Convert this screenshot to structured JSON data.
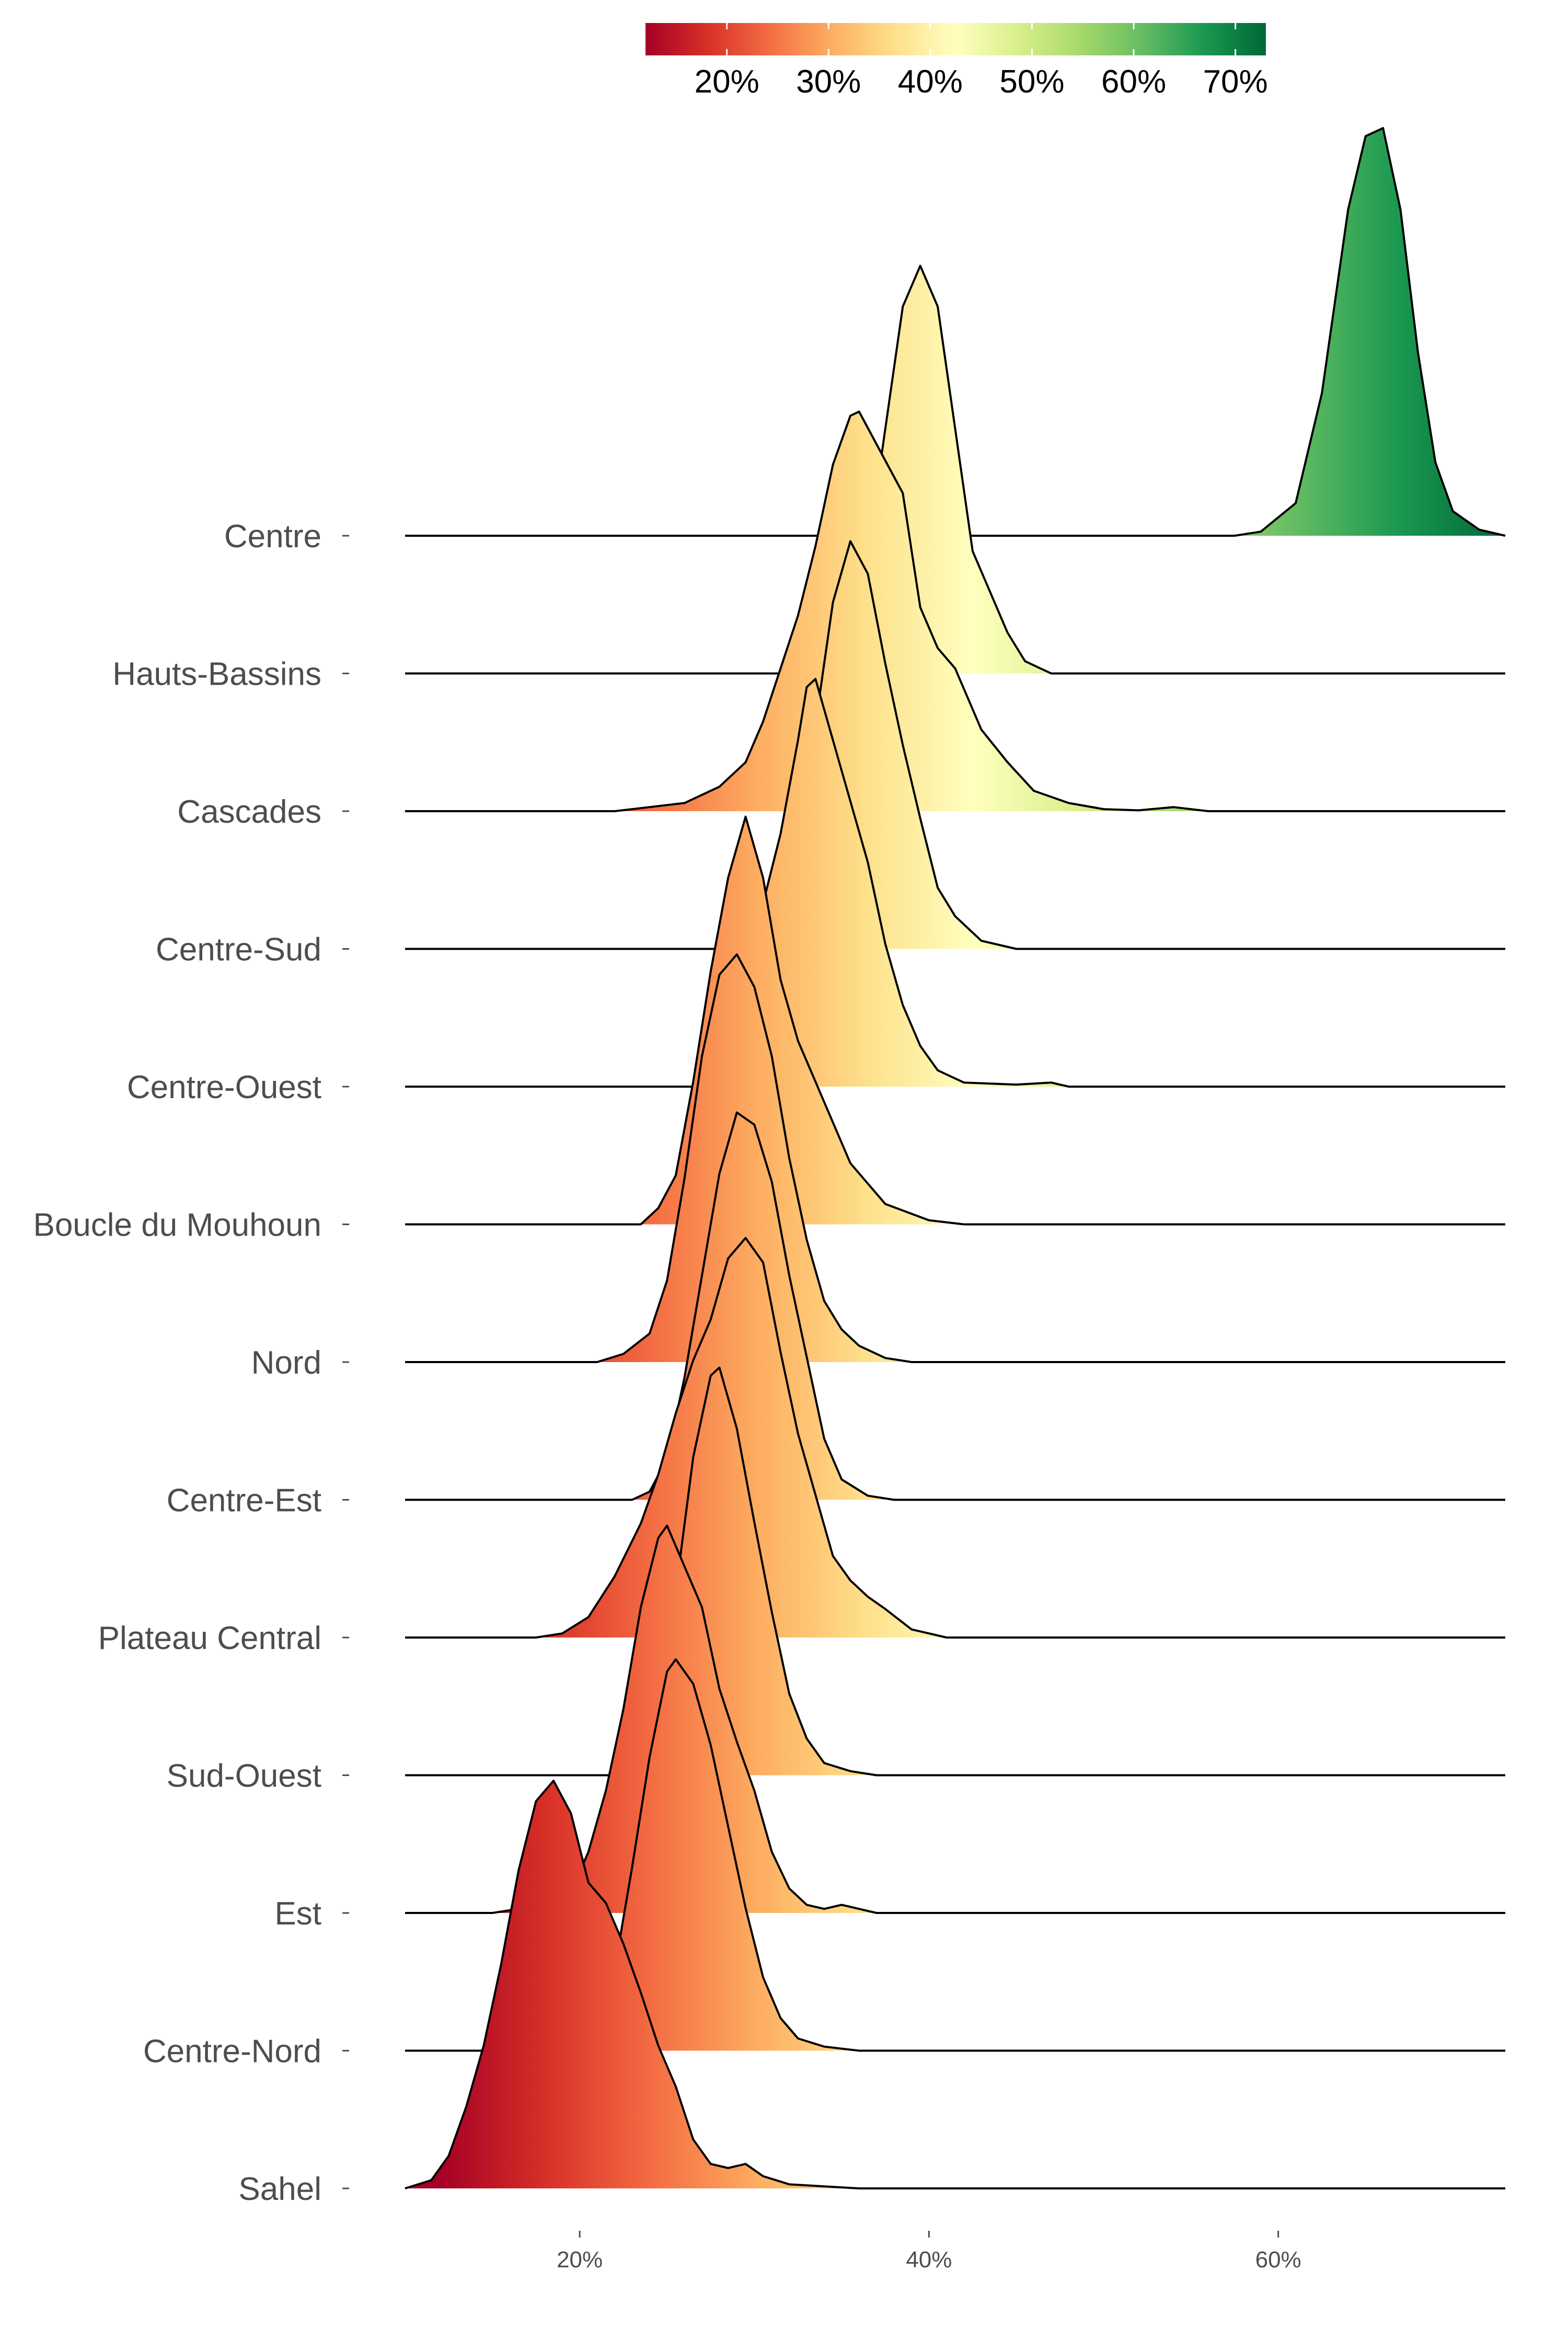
{
  "chart_data": {
    "type": "ridgeline",
    "title": "",
    "xlabel": "",
    "ylabel": "",
    "xlim": [
      10,
      73
    ],
    "x_ticks": [
      {
        "value": 20,
        "label": "20%"
      },
      {
        "value": 40,
        "label": "40%"
      },
      {
        "value": 60,
        "label": "60%"
      }
    ],
    "fill_scale": {
      "palette": "RdYlGn",
      "domain": [
        12,
        73
      ],
      "colors": [
        "#a50026",
        "#d73027",
        "#f46d43",
        "#fdae61",
        "#fee08b",
        "#ffffbf",
        "#d9ef8b",
        "#a6d96a",
        "#66bd63",
        "#1a9850",
        "#006837"
      ],
      "legend_ticks": [
        {
          "value": 20,
          "label": "20%"
        },
        {
          "value": 30,
          "label": "30%"
        },
        {
          "value": 40,
          "label": "40%"
        },
        {
          "value": 50,
          "label": "50%"
        },
        {
          "value": 60,
          "label": "60%"
        },
        {
          "value": 70,
          "label": "70%"
        }
      ],
      "legend_position": "top"
    },
    "series": [
      {
        "name": "Centre",
        "points": [
          [
            57.5,
            0
          ],
          [
            59,
            0.01
          ],
          [
            61,
            0.08
          ],
          [
            62.5,
            0.35
          ],
          [
            64,
            0.8
          ],
          [
            65,
            0.98
          ],
          [
            66,
            1
          ],
          [
            67,
            0.8
          ],
          [
            68,
            0.45
          ],
          [
            69,
            0.18
          ],
          [
            70,
            0.06
          ],
          [
            71.5,
            0.015
          ],
          [
            73,
            0
          ]
        ]
      },
      {
        "name": "Hauts-Bassins",
        "points": [
          [
            32,
            0
          ],
          [
            34,
            0.02
          ],
          [
            35.5,
            0.12
          ],
          [
            36.5,
            0.3
          ],
          [
            37.5,
            0.6
          ],
          [
            38.5,
            0.9
          ],
          [
            39.5,
            1
          ],
          [
            40.5,
            0.9
          ],
          [
            41.5,
            0.6
          ],
          [
            42.5,
            0.3
          ],
          [
            43.5,
            0.2
          ],
          [
            44.5,
            0.1
          ],
          [
            45.5,
            0.03
          ],
          [
            47,
            0
          ]
        ]
      },
      {
        "name": "Cascades",
        "points": [
          [
            22,
            0
          ],
          [
            24,
            0.01
          ],
          [
            26,
            0.02
          ],
          [
            28,
            0.06
          ],
          [
            29.5,
            0.12
          ],
          [
            30.5,
            0.22
          ],
          [
            31.5,
            0.35
          ],
          [
            32.5,
            0.48
          ],
          [
            33.5,
            0.65
          ],
          [
            34.5,
            0.85
          ],
          [
            35.5,
            0.97
          ],
          [
            36,
            0.98
          ],
          [
            37,
            0.9
          ],
          [
            38.5,
            0.78
          ],
          [
            39.5,
            0.5
          ],
          [
            40.5,
            0.4
          ],
          [
            41.5,
            0.35
          ],
          [
            43,
            0.2
          ],
          [
            44.5,
            0.12
          ],
          [
            46,
            0.05
          ],
          [
            48,
            0.02
          ],
          [
            50,
            0.005
          ],
          [
            52,
            0.002
          ],
          [
            54,
            0.01
          ],
          [
            56,
            0
          ]
        ]
      },
      {
        "name": "Centre-Sud",
        "points": [
          [
            29,
            0
          ],
          [
            30.5,
            0.02
          ],
          [
            31.5,
            0.08
          ],
          [
            32.5,
            0.25
          ],
          [
            33.5,
            0.55
          ],
          [
            34.5,
            0.85
          ],
          [
            35.5,
            1
          ],
          [
            36.5,
            0.92
          ],
          [
            37.5,
            0.7
          ],
          [
            38.5,
            0.5
          ],
          [
            39.5,
            0.32
          ],
          [
            40.5,
            0.15
          ],
          [
            41.5,
            0.08
          ],
          [
            43,
            0.02
          ],
          [
            45,
            0
          ]
        ]
      },
      {
        "name": "Centre-Ouest",
        "points": [
          [
            26.5,
            0
          ],
          [
            27.5,
            0.01
          ],
          [
            28.5,
            0.1
          ],
          [
            29.5,
            0.3
          ],
          [
            30.5,
            0.45
          ],
          [
            31.5,
            0.62
          ],
          [
            32.5,
            0.85
          ],
          [
            33,
            0.98
          ],
          [
            33.5,
            1
          ],
          [
            34.5,
            0.85
          ],
          [
            35.5,
            0.7
          ],
          [
            36.5,
            0.55
          ],
          [
            37.5,
            0.35
          ],
          [
            38.5,
            0.2
          ],
          [
            39.5,
            0.1
          ],
          [
            40.5,
            0.04
          ],
          [
            42,
            0.01
          ],
          [
            45,
            0.005
          ],
          [
            47,
            0.01
          ],
          [
            48,
            0
          ]
        ]
      },
      {
        "name": "Boucle du Mouhoun",
        "points": [
          [
            23.5,
            0
          ],
          [
            24.5,
            0.04
          ],
          [
            25.5,
            0.12
          ],
          [
            26.5,
            0.35
          ],
          [
            27.5,
            0.62
          ],
          [
            28.5,
            0.85
          ],
          [
            29.5,
            1
          ],
          [
            30.5,
            0.85
          ],
          [
            31.5,
            0.6
          ],
          [
            32.5,
            0.45
          ],
          [
            33.5,
            0.35
          ],
          [
            34.5,
            0.25
          ],
          [
            35.5,
            0.15
          ],
          [
            37.5,
            0.05
          ],
          [
            40,
            0.01
          ],
          [
            42,
            0
          ]
        ]
      },
      {
        "name": "Nord",
        "points": [
          [
            21,
            0
          ],
          [
            22.5,
            0.02
          ],
          [
            24,
            0.07
          ],
          [
            25,
            0.2
          ],
          [
            26,
            0.45
          ],
          [
            27,
            0.75
          ],
          [
            28,
            0.95
          ],
          [
            29,
            1
          ],
          [
            30,
            0.92
          ],
          [
            31,
            0.75
          ],
          [
            32,
            0.5
          ],
          [
            33,
            0.3
          ],
          [
            34,
            0.15
          ],
          [
            35,
            0.08
          ],
          [
            36,
            0.04
          ],
          [
            37.5,
            0.01
          ],
          [
            39,
            0
          ]
        ]
      },
      {
        "name": "Centre-Est",
        "points": [
          [
            23,
            0
          ],
          [
            24,
            0.02
          ],
          [
            25,
            0.1
          ],
          [
            26,
            0.3
          ],
          [
            27,
            0.55
          ],
          [
            28,
            0.8
          ],
          [
            29,
            0.95
          ],
          [
            30,
            0.92
          ],
          [
            31,
            0.78
          ],
          [
            32,
            0.55
          ],
          [
            33,
            0.35
          ],
          [
            34,
            0.15
          ],
          [
            35,
            0.05
          ],
          [
            36.5,
            0.01
          ],
          [
            38,
            0
          ]
        ]
      },
      {
        "name": "Plateau Central",
        "points": [
          [
            17.5,
            0
          ],
          [
            19,
            0.01
          ],
          [
            20.5,
            0.05
          ],
          [
            22,
            0.15
          ],
          [
            23.5,
            0.28
          ],
          [
            24.5,
            0.4
          ],
          [
            25.5,
            0.55
          ],
          [
            26.5,
            0.68
          ],
          [
            27.5,
            0.78
          ],
          [
            28.5,
            0.93
          ],
          [
            29.5,
            0.98
          ],
          [
            30.5,
            0.92
          ],
          [
            31.5,
            0.7
          ],
          [
            32.5,
            0.5
          ],
          [
            33.5,
            0.35
          ],
          [
            34.5,
            0.2
          ],
          [
            35.5,
            0.14
          ],
          [
            36.5,
            0.1
          ],
          [
            37.5,
            0.07
          ],
          [
            39,
            0.02
          ],
          [
            41,
            0
          ]
        ]
      },
      {
        "name": "Sud-Ouest",
        "points": [
          [
            22.5,
            0
          ],
          [
            23.5,
            0.03
          ],
          [
            24.5,
            0.18
          ],
          [
            25.5,
            0.45
          ],
          [
            26.5,
            0.78
          ],
          [
            27.5,
            0.98
          ],
          [
            28,
            1
          ],
          [
            29,
            0.85
          ],
          [
            30,
            0.62
          ],
          [
            31,
            0.4
          ],
          [
            32,
            0.2
          ],
          [
            33,
            0.09
          ],
          [
            34,
            0.03
          ],
          [
            35.5,
            0.01
          ],
          [
            37,
            0
          ]
        ]
      },
      {
        "name": "Est",
        "points": [
          [
            15,
            0
          ],
          [
            16.5,
            0.01
          ],
          [
            18,
            0.02
          ],
          [
            19.5,
            0.05
          ],
          [
            20.5,
            0.15
          ],
          [
            21.5,
            0.3
          ],
          [
            22.5,
            0.5
          ],
          [
            23.5,
            0.75
          ],
          [
            24.5,
            0.92
          ],
          [
            25,
            0.95
          ],
          [
            26,
            0.85
          ],
          [
            27,
            0.75
          ],
          [
            28,
            0.55
          ],
          [
            29,
            0.42
          ],
          [
            30,
            0.3
          ],
          [
            31,
            0.15
          ],
          [
            32,
            0.06
          ],
          [
            33,
            0.02
          ],
          [
            34,
            0.01
          ],
          [
            35,
            0.02
          ],
          [
            36,
            0.01
          ],
          [
            37,
            0
          ]
        ]
      },
      {
        "name": "Centre-Nord",
        "points": [
          [
            20,
            0
          ],
          [
            21,
            0.05
          ],
          [
            22,
            0.2
          ],
          [
            23,
            0.45
          ],
          [
            24,
            0.72
          ],
          [
            25,
            0.93
          ],
          [
            25.5,
            0.96
          ],
          [
            26.5,
            0.9
          ],
          [
            27.5,
            0.75
          ],
          [
            28.5,
            0.55
          ],
          [
            29.5,
            0.35
          ],
          [
            30.5,
            0.18
          ],
          [
            31.5,
            0.08
          ],
          [
            32.5,
            0.03
          ],
          [
            34,
            0.01
          ],
          [
            36,
            0
          ]
        ]
      },
      {
        "name": "Sahel",
        "points": [
          [
            10,
            0
          ],
          [
            11.5,
            0.02
          ],
          [
            12.5,
            0.08
          ],
          [
            13.5,
            0.2
          ],
          [
            14.5,
            0.35
          ],
          [
            15.5,
            0.55
          ],
          [
            16.5,
            0.78
          ],
          [
            17.5,
            0.95
          ],
          [
            18.5,
            1
          ],
          [
            19.5,
            0.92
          ],
          [
            20.5,
            0.75
          ],
          [
            21.5,
            0.7
          ],
          [
            22.5,
            0.6
          ],
          [
            23.5,
            0.48
          ],
          [
            24.5,
            0.35
          ],
          [
            25.5,
            0.25
          ],
          [
            26.5,
            0.12
          ],
          [
            27.5,
            0.06
          ],
          [
            28.5,
            0.05
          ],
          [
            29.5,
            0.06
          ],
          [
            30.5,
            0.03
          ],
          [
            32,
            0.01
          ],
          [
            34,
            0.005
          ],
          [
            36,
            0
          ]
        ]
      }
    ]
  }
}
